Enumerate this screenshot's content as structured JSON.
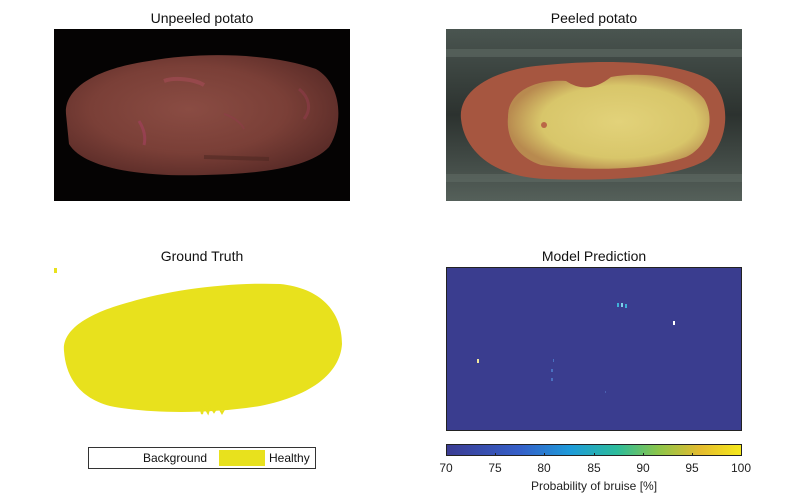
{
  "panels": {
    "unpeeled": {
      "title": "Unpeeled potato"
    },
    "peeled": {
      "title": "Peeled potato"
    },
    "ground_truth": {
      "title": "Ground Truth"
    },
    "prediction": {
      "title": "Model Prediction"
    }
  },
  "legend": {
    "items": [
      {
        "label": "Background",
        "color": "#ffffff"
      },
      {
        "label": "Healthy",
        "color": "#e8e11d"
      }
    ]
  },
  "colorbar": {
    "label": "Probability of bruise [%]",
    "ticks": [
      "70",
      "75",
      "80",
      "85",
      "90",
      "95",
      "100"
    ],
    "range": [
      70,
      100
    ],
    "colors": [
      "#3b3c93",
      "#3560c9",
      "#1e9bd9",
      "#2dbc9a",
      "#8cc54a",
      "#e4bb2f",
      "#f5e81b"
    ]
  },
  "colors": {
    "potato_skin": "#7a3f37",
    "peeled_flesh": "#d8c66a",
    "healthy": "#e8e11d",
    "prediction_background": "#3a3d8f"
  }
}
